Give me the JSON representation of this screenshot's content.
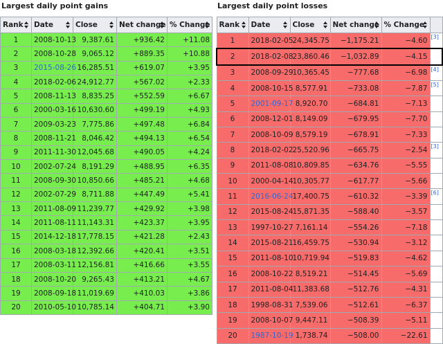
{
  "gains": {
    "title": "Largest daily point gains",
    "columns": [
      "Rank",
      "Date",
      "Close",
      "Net change",
      "% Change"
    ],
    "rows": [
      {
        "cells": [
          "1",
          "2008-10-13",
          "9,387.61",
          "+936.42",
          "+11.08"
        ]
      },
      {
        "cells": [
          "2",
          "2008-10-28",
          "9,065.12",
          "+889.35",
          "+10.88"
        ]
      },
      {
        "cells": [
          "3",
          {
            "text": "2015-08-26",
            "link": true
          },
          "16,285.51",
          "+619.07",
          "+3.95"
        ]
      },
      {
        "cells": [
          "4",
          "2018-02-06",
          "24,912.77",
          "+567.02",
          "+2.33"
        ]
      },
      {
        "cells": [
          "5",
          "2008-11-13",
          "8,835.25",
          "+552.59",
          "+6.67"
        ]
      },
      {
        "cells": [
          "6",
          "2000-03-16",
          "10,630.60",
          "+499.19",
          "+4.93"
        ]
      },
      {
        "cells": [
          "7",
          "2009-03-23",
          "7,775.86",
          "+497.48",
          "+6.84"
        ]
      },
      {
        "cells": [
          "8",
          "2008-11-21",
          "8,046.42",
          "+494.13",
          "+6.54"
        ]
      },
      {
        "cells": [
          "9",
          "2011-11-30",
          "12,045.68",
          "+490.05",
          "+4.24"
        ]
      },
      {
        "cells": [
          "10",
          "2002-07-24",
          "8,191.29",
          "+488.95",
          "+6.35"
        ]
      },
      {
        "cells": [
          "11",
          "2008-09-30",
          "10,850.66",
          "+485.21",
          "+4.68"
        ]
      },
      {
        "cells": [
          "12",
          "2002-07-29",
          "8,711.88",
          "+447.49",
          "+5.41"
        ]
      },
      {
        "cells": [
          "13",
          "2011-08-09",
          "11,239.77",
          "+429.92",
          "+3.98"
        ]
      },
      {
        "cells": [
          "14",
          "2011-08-11",
          "11,143.31",
          "+423.37",
          "+3.95"
        ]
      },
      {
        "cells": [
          "15",
          "2014-12-18",
          "17,778.15",
          "+421.28",
          "+2.43"
        ]
      },
      {
        "cells": [
          "16",
          "2008-03-18",
          "12,392.66",
          "+420.41",
          "+3.51"
        ]
      },
      {
        "cells": [
          "17",
          "2008-03-11",
          "12,156.81",
          "+416.66",
          "+3.55"
        ]
      },
      {
        "cells": [
          "18",
          "2008-10-20",
          "9,265.43",
          "+413.21",
          "+4.67"
        ]
      },
      {
        "cells": [
          "19",
          "2008-09-18",
          "11,019.69",
          "+410.03",
          "+3.86"
        ]
      },
      {
        "cells": [
          "20",
          "2010-05-10",
          "10,785.14",
          "+404.71",
          "+3.90"
        ]
      }
    ]
  },
  "losses": {
    "title": "Largest daily point losses",
    "columns": [
      "Rank",
      "Date",
      "Close",
      "Net change",
      "% Change"
    ],
    "rows": [
      {
        "cells": [
          "1",
          "2018-02-05",
          "24,345.75",
          "−1,175.21",
          "−4.60"
        ],
        "note": "[3]"
      },
      {
        "cells": [
          "2",
          "2018-02-08",
          "23,860.46",
          "−1,032.89",
          "−4.15"
        ],
        "selected": true
      },
      {
        "cells": [
          "3",
          "2008-09-29",
          "10,365.45",
          "−777.68",
          "−6.98"
        ],
        "note": "[4]"
      },
      {
        "cells": [
          "4",
          "2008-10-15",
          "8,577.91",
          "−733.08",
          "−7.87"
        ],
        "note": "[5]"
      },
      {
        "cells": [
          "5",
          {
            "text": "2001-09-17",
            "link": true
          },
          "8,920.70",
          "−684.81",
          "−7.13"
        ]
      },
      {
        "cells": [
          "6",
          "2008-12-01",
          "8,149.09",
          "−679.95",
          "−7.70"
        ]
      },
      {
        "cells": [
          "7",
          "2008-10-09",
          "8,579.19",
          "−678.91",
          "−7.33"
        ]
      },
      {
        "cells": [
          "8",
          "2018-02-02",
          "25,520.96",
          "−665.75",
          "−2.54"
        ],
        "note": "[3]"
      },
      {
        "cells": [
          "9",
          "2011-08-08",
          "10,809.85",
          "−634.76",
          "−5.55"
        ]
      },
      {
        "cells": [
          "10",
          "2000-04-14",
          "10,305.77",
          "−617.77",
          "−5.66"
        ]
      },
      {
        "cells": [
          "11",
          {
            "text": "2016-06-24",
            "link": true
          },
          "17,400.75",
          "−610.32",
          "−3.39"
        ],
        "note": "[6]"
      },
      {
        "cells": [
          "12",
          "2015-08-24",
          "15,871.35",
          "−588.40",
          "−3.57"
        ]
      },
      {
        "cells": [
          "13",
          "1997-10-27",
          "7,161.14",
          "−554.26",
          "−7.18"
        ]
      },
      {
        "cells": [
          "14",
          "2015-08-21",
          "16,459.75",
          "−530.94",
          "−3.12"
        ]
      },
      {
        "cells": [
          "15",
          "2011-08-10",
          "10,719.94",
          "−519.83",
          "−4.62"
        ]
      },
      {
        "cells": [
          "16",
          "2008-10-22",
          "8,519.21",
          "−514.45",
          "−5.69"
        ]
      },
      {
        "cells": [
          "17",
          "2011-08-04",
          "11,383.68",
          "−512.76",
          "−4.31"
        ]
      },
      {
        "cells": [
          "18",
          "1998-08-31",
          "7,539.06",
          "−512.61",
          "−6.37"
        ]
      },
      {
        "cells": [
          "19",
          "2008-10-07",
          "9,447.11",
          "−508.39",
          "−5.11"
        ]
      },
      {
        "cells": [
          "20",
          {
            "text": "1987-10-19",
            "link": true
          },
          "1,738.74",
          "−508.00",
          "−22.61"
        ]
      }
    ]
  }
}
